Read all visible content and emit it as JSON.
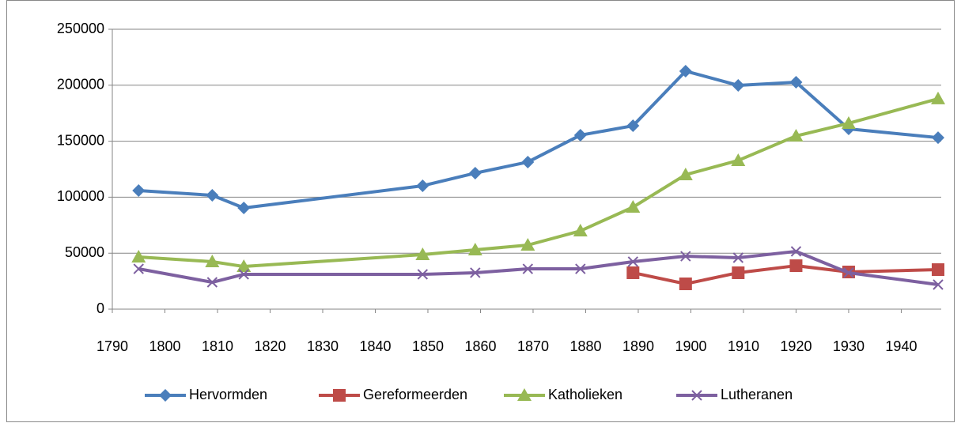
{
  "chart_data": {
    "type": "line",
    "x": [
      1795,
      1809,
      1815,
      1849,
      1859,
      1869,
      1879,
      1889,
      1899,
      1909,
      1920,
      1930,
      1947
    ],
    "series": [
      {
        "name": "Hervormden",
        "color": "#4a7ebb",
        "marker": "diamond",
        "values": [
          105900,
          101700,
          90400,
          110200,
          121500,
          131400,
          155400,
          163800,
          212600,
          199900,
          202700,
          161000,
          153200
        ]
      },
      {
        "name": "Gereformeerden",
        "color": "#be4b48",
        "marker": "square",
        "values": [
          null,
          null,
          null,
          null,
          null,
          null,
          null,
          32500,
          22600,
          32500,
          38800,
          33200,
          35300
        ]
      },
      {
        "name": "Katholieken",
        "color": "#98b954",
        "marker": "triangle",
        "values": [
          46600,
          42400,
          38100,
          48700,
          53000,
          57200,
          69900,
          91100,
          120100,
          132800,
          154700,
          166000,
          187900
        ]
      },
      {
        "name": "Lutheranen",
        "color": "#7d60a0",
        "marker": "x",
        "values": [
          36000,
          24000,
          31100,
          31100,
          32500,
          36000,
          36000,
          42400,
          47300,
          45900,
          51600,
          32500,
          21900
        ]
      }
    ],
    "xlim": [
      1790,
      1947
    ],
    "xticks": [
      1790,
      1800,
      1810,
      1820,
      1830,
      1840,
      1850,
      1860,
      1870,
      1880,
      1890,
      1900,
      1910,
      1920,
      1930,
      1940
    ],
    "ylim": [
      0,
      250000
    ],
    "yticks": [
      0,
      50000,
      100000,
      150000,
      200000,
      250000
    ],
    "grid": true,
    "legend": "bottom"
  }
}
